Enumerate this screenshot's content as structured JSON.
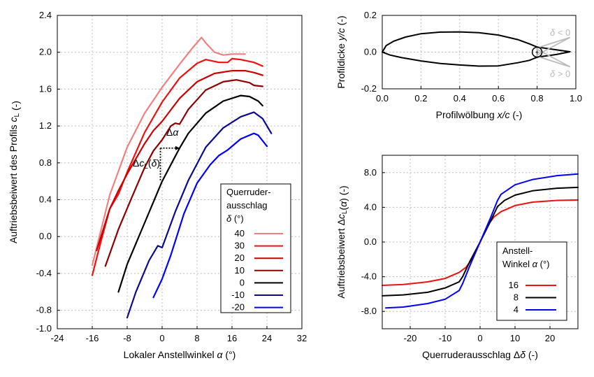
{
  "chart_data": [
    {
      "type": "line",
      "xlabel": "Lokaler Anstellwinkel α (°)",
      "ylabel": "Auftriebsbeiwert des Profils c_L (-)",
      "xlim": [
        -24,
        32
      ],
      "ylim": [
        -1.0,
        2.4
      ],
      "xticks": [
        -24,
        -16,
        -8,
        0,
        8,
        16,
        24,
        32
      ],
      "yticks": [
        -1.0,
        -0.8,
        -0.4,
        0.0,
        0.4,
        0.8,
        1.2,
        1.6,
        2.0,
        2.4
      ],
      "xtick_labels": [
        "-24",
        "-16",
        "-8",
        "0",
        "8",
        "16",
        "24",
        "32"
      ],
      "ytick_labels": [
        "-1.0",
        "-0.8",
        "-0.4",
        "0.0",
        "0.4",
        "0.8",
        "1.2",
        "1.6",
        "2.0",
        "2.4"
      ],
      "grid": true,
      "legend": {
        "title": [
          "Querruder-",
          "ausschlag",
          "δ (°)"
        ],
        "placement": "bottom-right"
      },
      "annotations": [
        "Δα",
        "Δc_L(δ)"
      ],
      "series": [
        {
          "name": "40",
          "color": "#f08080",
          "points": [
            [
              -16,
              -0.31
            ],
            [
              -12,
              0.45
            ],
            [
              -8,
              0.97
            ],
            [
              -4,
              1.34
            ],
            [
              0,
              1.62
            ],
            [
              4,
              1.87
            ],
            [
              7,
              2.05
            ],
            [
              9,
              2.16
            ],
            [
              10,
              2.1
            ],
            [
              12,
              2.0
            ],
            [
              14,
              1.97
            ],
            [
              16,
              1.98
            ],
            [
              19,
              1.98
            ]
          ]
        },
        {
          "name": "30",
          "color": "#ee1111",
          "points": [
            [
              -16,
              -0.42
            ],
            [
              -14,
              -0.05
            ],
            [
              -12,
              0.3
            ],
            [
              -10,
              0.46
            ],
            [
              -8,
              0.7
            ],
            [
              -4,
              1.13
            ],
            [
              0,
              1.46
            ],
            [
              4,
              1.72
            ],
            [
              8,
              1.88
            ],
            [
              10,
              1.92
            ],
            [
              13,
              1.89
            ],
            [
              15,
              1.89
            ],
            [
              16,
              1.93
            ],
            [
              18,
              1.92
            ],
            [
              21,
              1.89
            ],
            [
              23,
              1.85
            ]
          ]
        },
        {
          "name": "20",
          "color": "#cc0000",
          "points": [
            [
              -15,
              -0.15
            ],
            [
              -12,
              0.3
            ],
            [
              -10,
              0.5
            ],
            [
              -8,
              0.68
            ],
            [
              -4,
              1.01
            ],
            [
              -2,
              1.15
            ],
            [
              0,
              1.25
            ],
            [
              4,
              1.5
            ],
            [
              8,
              1.68
            ],
            [
              12,
              1.77
            ],
            [
              16,
              1.8
            ],
            [
              19,
              1.8
            ],
            [
              21,
              1.78
            ],
            [
              23,
              1.75
            ]
          ]
        },
        {
          "name": "10",
          "color": "#8b0000",
          "points": [
            [
              -13,
              -0.32
            ],
            [
              -10,
              0.08
            ],
            [
              -7,
              0.42
            ],
            [
              -4,
              0.75
            ],
            [
              -2,
              0.93
            ],
            [
              0,
              1.05
            ],
            [
              2,
              1.2
            ],
            [
              3,
              1.23
            ],
            [
              4,
              1.22
            ],
            [
              6,
              1.38
            ],
            [
              10,
              1.59
            ],
            [
              14,
              1.68
            ],
            [
              17,
              1.7
            ],
            [
              20,
              1.67
            ],
            [
              21,
              1.64
            ],
            [
              23,
              1.63
            ]
          ]
        },
        {
          "name": "0",
          "color": "#000000",
          "points": [
            [
              -10,
              -0.6
            ],
            [
              -8,
              -0.3
            ],
            [
              -4,
              0.15
            ],
            [
              0,
              0.6
            ],
            [
              4,
              0.96
            ],
            [
              6,
              1.12
            ],
            [
              10,
              1.34
            ],
            [
              14,
              1.47
            ],
            [
              18,
              1.53
            ],
            [
              20,
              1.52
            ],
            [
              22,
              1.47
            ],
            [
              23,
              1.42
            ]
          ]
        },
        {
          "name": "-10",
          "color": "#0a0a8c",
          "points": [
            [
              -8,
              -0.88
            ],
            [
              -6,
              -0.6
            ],
            [
              -3,
              -0.26
            ],
            [
              -1,
              -0.1
            ],
            [
              0,
              -0.12
            ],
            [
              3,
              0.27
            ],
            [
              6,
              0.61
            ],
            [
              10,
              0.97
            ],
            [
              14,
              1.18
            ],
            [
              18,
              1.3
            ],
            [
              21,
              1.35
            ],
            [
              23,
              1.28
            ],
            [
              25,
              1.12
            ]
          ]
        },
        {
          "name": "-20",
          "color": "#0000ff",
          "points": [
            [
              -2,
              -0.66
            ],
            [
              0,
              -0.46
            ],
            [
              2,
              -0.2
            ],
            [
              5,
              0.25
            ],
            [
              8,
              0.58
            ],
            [
              11,
              0.78
            ],
            [
              13,
              0.88
            ],
            [
              15,
              0.94
            ],
            [
              18,
              1.06
            ],
            [
              21,
              1.12
            ],
            [
              22,
              1.1
            ],
            [
              24,
              0.98
            ]
          ]
        }
      ]
    },
    {
      "type": "line",
      "xlabel": "Profilwölbung x/c (-)",
      "ylabel": "Profildicke y/c (-)",
      "xlim": [
        0.0,
        1.0
      ],
      "ylim": [
        -0.2,
        0.2
      ],
      "xticks": [
        0.0,
        0.2,
        0.4,
        0.6,
        0.8,
        1.0
      ],
      "yticks": [
        -0.2,
        0.0,
        0.2
      ],
      "xtick_labels": [
        "0.0",
        "0.2",
        "0.4",
        "0.6",
        "0.8",
        "1.0"
      ],
      "ytick_labels": [
        "-0.2",
        "0.0",
        "0.2"
      ],
      "grid": true,
      "annotations": [
        "δ < 0",
        "δ > 0"
      ],
      "series": [
        {
          "name": "",
          "color": "#000000",
          "points": [
            [
              0,
              0
            ],
            [
              0.02,
              0.035
            ],
            [
              0.06,
              0.06
            ],
            [
              0.12,
              0.082
            ],
            [
              0.2,
              0.1
            ],
            [
              0.3,
              0.109
            ],
            [
              0.4,
              0.11
            ],
            [
              0.5,
              0.106
            ],
            [
              0.6,
              0.093
            ],
            [
              0.7,
              0.068
            ],
            [
              0.76,
              0.045
            ],
            [
              0.8,
              0.028
            ],
            [
              0.9,
              0.012
            ],
            [
              0.97,
              0.002
            ],
            [
              0.9,
              -0.013
            ],
            [
              0.8,
              -0.028
            ],
            [
              0.76,
              -0.045
            ],
            [
              0.7,
              -0.058
            ],
            [
              0.6,
              -0.075
            ],
            [
              0.5,
              -0.076
            ],
            [
              0.4,
              -0.07
            ],
            [
              0.3,
              -0.062
            ],
            [
              0.2,
              -0.048
            ],
            [
              0.1,
              -0.03
            ],
            [
              0.04,
              -0.016
            ],
            [
              0,
              0
            ]
          ]
        }
      ]
    },
    {
      "type": "line",
      "xlabel": "Querruderausschlag Δδ (-)",
      "ylabel": "Auftriebsbeiwert Δc_L(α) (-)",
      "xlim": [
        -28,
        28
      ],
      "ylim": [
        -10,
        10
      ],
      "xticks": [
        -20,
        -10,
        0,
        10,
        20
      ],
      "yticks": [
        -8,
        -4,
        0,
        4,
        8
      ],
      "xtick_labels": [
        "-20",
        "-10",
        "0",
        "10",
        "20"
      ],
      "ytick_labels": [
        "-8.0",
        "-4.0",
        "0.0",
        "4.0",
        "8.0"
      ],
      "grid": true,
      "legend": {
        "title": [
          "Anstell-",
          "Winkel α (°)"
        ],
        "placement": "bottom-right"
      },
      "series": [
        {
          "name": "16",
          "color": "#ee1111",
          "points": [
            [
              -28,
              -5.0
            ],
            [
              -22,
              -4.9
            ],
            [
              -15,
              -4.6
            ],
            [
              -10,
              -4.2
            ],
            [
              -6,
              -3.5
            ],
            [
              -4,
              -2.9
            ],
            [
              -2,
              -1.8
            ],
            [
              0,
              0
            ],
            [
              2,
              1.8
            ],
            [
              4,
              2.9
            ],
            [
              6,
              3.5
            ],
            [
              10,
              4.2
            ],
            [
              15,
              4.6
            ],
            [
              22,
              4.8
            ],
            [
              28,
              4.85
            ]
          ]
        },
        {
          "name": "8",
          "color": "#000000",
          "points": [
            [
              -28,
              -6.2
            ],
            [
              -22,
              -6.1
            ],
            [
              -15,
              -5.8
            ],
            [
              -10,
              -5.3
            ],
            [
              -6,
              -4.6
            ],
            [
              -5,
              -4.0
            ],
            [
              -3,
              -2.3
            ],
            [
              0,
              0
            ],
            [
              3,
              2.4
            ],
            [
              5,
              4.1
            ],
            [
              7,
              4.8
            ],
            [
              10,
              5.4
            ],
            [
              15,
              5.9
            ],
            [
              22,
              6.2
            ],
            [
              28,
              6.3
            ]
          ]
        },
        {
          "name": "4",
          "color": "#0000ff",
          "points": [
            [
              -27,
              -7.6
            ],
            [
              -22,
              -7.5
            ],
            [
              -15,
              -7.1
            ],
            [
              -10,
              -6.6
            ],
            [
              -6,
              -5.6
            ],
            [
              -5,
              -4.8
            ],
            [
              -3,
              -2.8
            ],
            [
              0,
              0
            ],
            [
              3,
              2.8
            ],
            [
              5,
              4.8
            ],
            [
              6,
              5.5
            ],
            [
              10,
              6.6
            ],
            [
              15,
              7.2
            ],
            [
              22,
              7.65
            ],
            [
              28,
              7.85
            ]
          ]
        }
      ]
    }
  ]
}
